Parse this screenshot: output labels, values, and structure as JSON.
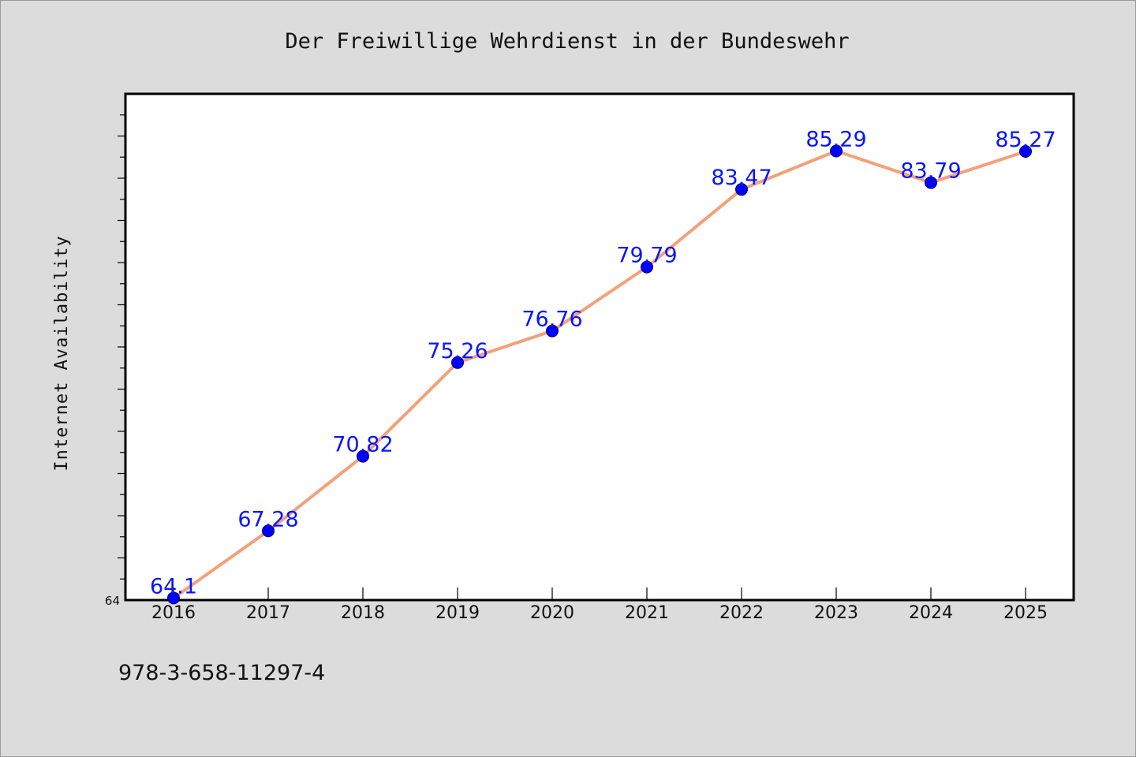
{
  "chart_data": {
    "type": "line",
    "title": "Der Freiwillige Wehrdienst in der Bundeswehr",
    "xlabel": "",
    "ylabel": "Internet Availability",
    "categories": [
      "2016",
      "2017",
      "2018",
      "2019",
      "2020",
      "2021",
      "2022",
      "2023",
      "2024",
      "2025"
    ],
    "series": [
      {
        "values": [
          64.1,
          67.28,
          70.82,
          75.26,
          76.76,
          79.79,
          83.47,
          85.29,
          83.79,
          85.27
        ],
        "labels": [
          "64.1",
          "67.28",
          "70.82",
          "75.26",
          "76.76",
          "79.79",
          "83.47",
          "85.29",
          "83.79",
          "85.27"
        ],
        "line_color": "#f4a07a",
        "marker_color": "#0000ff"
      }
    ],
    "ylim": [
      64,
      88
    ],
    "y_tick_labels": [
      "64"
    ],
    "grid": false,
    "legend": "none"
  },
  "footer_text": "978-3-658-11297-4",
  "colors": {
    "background": "#dcdcdc",
    "plot_background": "#ffffff",
    "data_label": "#0a14ff"
  }
}
